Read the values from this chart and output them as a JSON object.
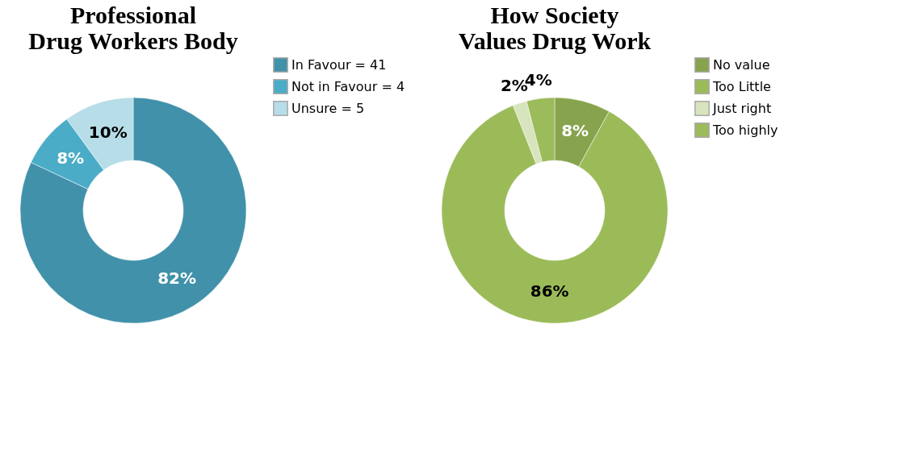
{
  "chart_data": [
    {
      "type": "donut",
      "title": "Professional Drug Workers Body",
      "categories": [
        "In Favour = 41",
        "Not in Favour = 4",
        "Unsure = 5"
      ],
      "values": [
        82,
        8,
        10
      ],
      "colors": [
        "#4191aa",
        "#4aacc6",
        "#b6dde8"
      ],
      "value_labels": [
        "82%",
        "8%",
        "10%"
      ],
      "legend": "right"
    },
    {
      "type": "donut",
      "title": "How Society Values Drug Work",
      "categories": [
        "No value",
        "Too Little",
        "Just right",
        "Too highly"
      ],
      "values": [
        8,
        86,
        2,
        4
      ],
      "colors": [
        "#87a34d",
        "#9bbb59",
        "#d7e4bd",
        "#9cbb5a"
      ],
      "value_labels": [
        "8%",
        "86%",
        "2%",
        "4%"
      ],
      "legend": "right"
    }
  ]
}
